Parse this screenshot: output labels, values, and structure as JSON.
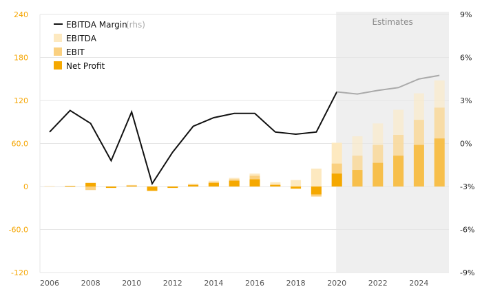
{
  "chart_data": {
    "type": "bar",
    "x": [
      2006,
      2007,
      2008,
      2009,
      2010,
      2011,
      2012,
      2013,
      2014,
      2015,
      2016,
      2017,
      2018,
      2019,
      2020,
      2021,
      2022,
      2023,
      2024,
      2025
    ],
    "x_tick_labels": [
      "2006",
      "2008",
      "2010",
      "2012",
      "2014",
      "2016",
      "2018",
      "2020",
      "2022",
      "2024"
    ],
    "y_left_ticks": [
      "240",
      "180",
      "120",
      "60.0",
      "0",
      "-60.0",
      "-120"
    ],
    "y_right_ticks": [
      "9%",
      "6%",
      "3%",
      "0%",
      "-3%",
      "-6%",
      "-9%"
    ],
    "ylim_left": [
      -120,
      240
    ],
    "ylim_right": [
      -9,
      9
    ],
    "estimates_start_year": 2020,
    "estimates_label": "Estimates",
    "series": [
      {
        "name": "EBITDA",
        "kind": "bar",
        "color": "#fde9c0",
        "values": [
          1,
          1,
          -2,
          0,
          2,
          -3,
          0,
          4,
          8,
          12,
          18,
          6,
          9,
          25,
          61,
          70,
          88,
          107,
          130,
          148
        ]
      },
      {
        "name": "EBIT",
        "kind": "bar",
        "color": "#fad080",
        "values": [
          0,
          0,
          -5,
          -1,
          2,
          -6,
          -1,
          3,
          6,
          10,
          15,
          3,
          -1,
          -14,
          32,
          43,
          58,
          72,
          93,
          110
        ]
      },
      {
        "name": "Net Profit",
        "kind": "bar",
        "color": "#f5a800",
        "values": [
          0,
          1,
          5,
          -2,
          1,
          -6,
          -2,
          2,
          5,
          8,
          10,
          2,
          -3,
          -11,
          18,
          23,
          33,
          43,
          58,
          67
        ]
      },
      {
        "name": "EBITDA Margin",
        "suffix": "(rhs)",
        "kind": "line",
        "axis": "right",
        "color": "#111111",
        "estimate_color": "#aaaaaa",
        "values": [
          0.8,
          2.3,
          1.4,
          -1.2,
          2.2,
          -2.8,
          -0.6,
          1.2,
          1.8,
          2.1,
          2.1,
          0.8,
          0.65,
          0.8,
          3.6,
          3.45,
          3.7,
          3.9,
          4.5,
          4.75
        ]
      }
    ]
  },
  "colors": {
    "left_axis": "#f5a500",
    "grid": "#e6e6e6",
    "estimates_band": "#efefef"
  }
}
